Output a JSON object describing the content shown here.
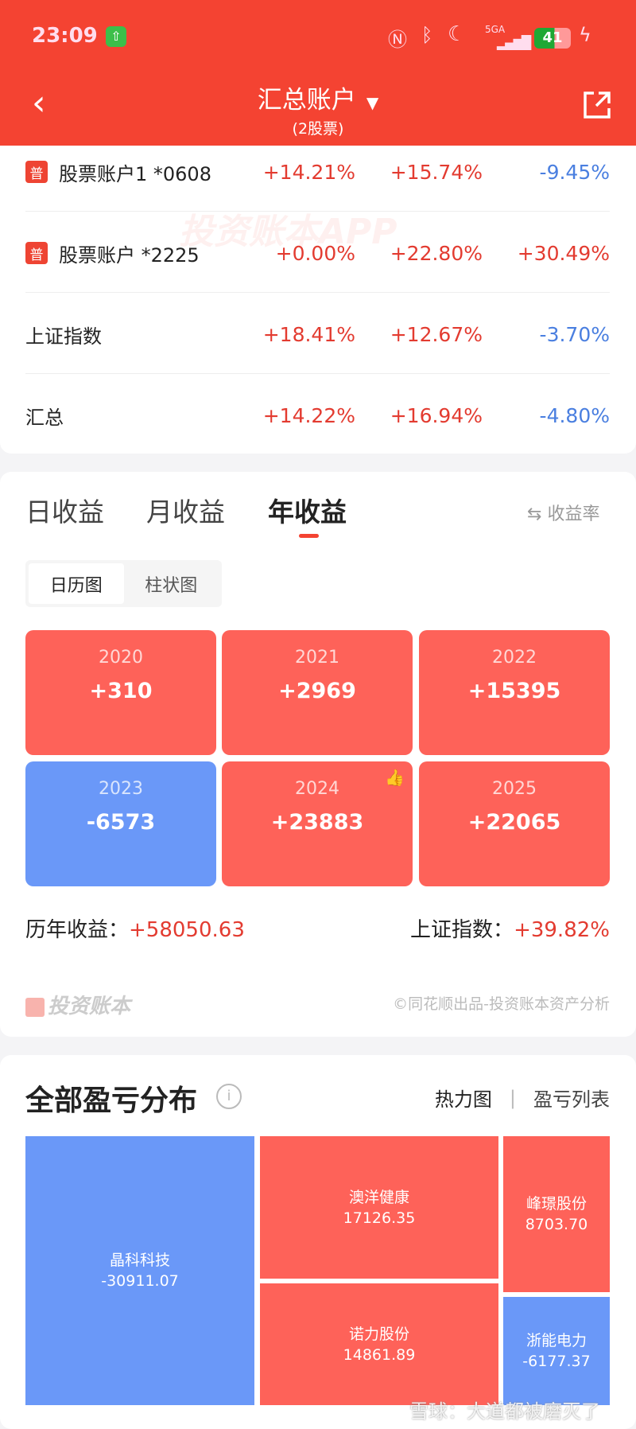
{
  "status_bar": {
    "time": "23:09",
    "network": "5GA",
    "battery": "41"
  },
  "header": {
    "title": "汇总账户",
    "subtitle": "(2股票)"
  },
  "accounts": [
    {
      "badge": "普",
      "name": "股票账户1 *0608",
      "values": [
        "+14.21%",
        "+15.74%",
        "-9.45%"
      ],
      "dirs": [
        "up",
        "up",
        "dn"
      ]
    },
    {
      "badge": "普",
      "name": "股票账户 *2225",
      "values": [
        "+0.00%",
        "+22.80%",
        "+30.49%"
      ],
      "dirs": [
        "up",
        "up",
        "up"
      ]
    },
    {
      "badge": "",
      "name": "上证指数",
      "values": [
        "+18.41%",
        "+12.67%",
        "-3.70%"
      ],
      "dirs": [
        "up",
        "up",
        "dn"
      ]
    },
    {
      "badge": "",
      "name": "汇总",
      "values": [
        "+14.22%",
        "+16.94%",
        "-4.80%"
      ],
      "dirs": [
        "up",
        "up",
        "dn"
      ]
    }
  ],
  "watermark_app": "投资账本APP",
  "returns": {
    "tabs": [
      "日收益",
      "月收益",
      "年收益"
    ],
    "active_tab": 2,
    "toggle_label": "收益率",
    "view_modes": [
      "日历图",
      "柱状图"
    ],
    "active_view": 0,
    "years": [
      {
        "year": "2020",
        "value": "+310",
        "color": "red"
      },
      {
        "year": "2021",
        "value": "+2969",
        "color": "red"
      },
      {
        "year": "2022",
        "value": "+15395",
        "color": "red"
      },
      {
        "year": "2023",
        "value": "-6573",
        "color": "blue"
      },
      {
        "year": "2024",
        "value": "+23883",
        "color": "red",
        "best": true
      },
      {
        "year": "2025",
        "value": "+22065",
        "color": "red"
      }
    ],
    "total_label": "历年收益：",
    "total_value": "+58050.63",
    "index_label": "上证指数：",
    "index_value": "+39.82%",
    "brand": "投资账本",
    "credit": "©同花顺出品-投资账本资产分析"
  },
  "distribution": {
    "title": "全部盈亏分布",
    "views": [
      "热力图",
      "盈亏列表"
    ],
    "items": [
      {
        "name": "晶科科技",
        "value": "-30911.07"
      },
      {
        "name": "澳洋健康",
        "value": "17126.35"
      },
      {
        "name": "诺力股份",
        "value": "14861.89"
      },
      {
        "name": "峰璟股份",
        "value": "8703.70"
      },
      {
        "name": "浙能电力",
        "value": "-6177.37"
      }
    ]
  },
  "footer_watermark": "雪球：大道都被磨灭了",
  "colors": {
    "header": "#f44332",
    "up": "#e33b30",
    "down": "#4a7fe0",
    "tile_red": "#fe6259",
    "tile_blue": "#6a98f8"
  }
}
